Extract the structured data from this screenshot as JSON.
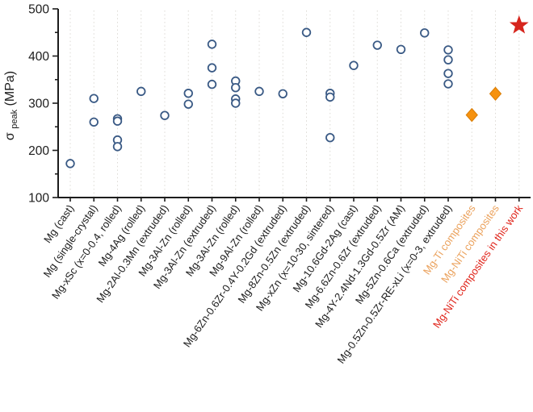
{
  "chart_data": {
    "type": "scatter",
    "title": "",
    "ylabel_symbol": "σ",
    "ylabel_subscript": "peak",
    "ylabel_unit": " (MPa)",
    "ylim": [
      100,
      500
    ],
    "yticks": [
      100,
      200,
      300,
      400,
      500
    ],
    "yticks_minor": [
      150,
      250,
      350,
      450
    ],
    "grid": "vertical-dashed",
    "legend": "none",
    "categories": [
      {
        "label": "Mg (cast)",
        "group": "alloy",
        "values": [
          172
        ]
      },
      {
        "label": "Mg (single-crystal)",
        "group": "alloy",
        "values": [
          310,
          260
        ]
      },
      {
        "label": "Mg-xSc (x=0-0.4, rolled)",
        "group": "alloy",
        "values": [
          267,
          262,
          222,
          208
        ]
      },
      {
        "label": "Mg-4Ag (rolled)",
        "group": "alloy",
        "values": [
          325
        ]
      },
      {
        "label": "Mg-2Al-0.3Mn (extruded)",
        "group": "alloy",
        "values": [
          274
        ]
      },
      {
        "label": "Mg-3Al-Zn (rolled)",
        "group": "alloy",
        "values": [
          321,
          298
        ]
      },
      {
        "label": "Mg-3Al-Zn (extruded)",
        "group": "alloy",
        "values": [
          425,
          375,
          340
        ]
      },
      {
        "label": "Mg-3Al-Zn (rolled)",
        "group": "alloy",
        "values": [
          347,
          333,
          309,
          300
        ]
      },
      {
        "label": "Mg-9Al-Zn (rolled)",
        "group": "alloy",
        "values": [
          325
        ]
      },
      {
        "label": "Mg-6Zn-0.6Zr-0.4Y-0.2Gd (extruded)",
        "group": "alloy",
        "values": [
          320
        ]
      },
      {
        "label": "Mg-8Zn-0.5Zn (extruded)",
        "group": "alloy",
        "values": [
          450
        ]
      },
      {
        "label": "Mg-xZn (x=10-30, sintered)",
        "group": "alloy",
        "values": [
          321,
          313,
          227
        ]
      },
      {
        "label": "Mg-10.6Gd-2Ag (cast)",
        "group": "alloy",
        "values": [
          380
        ]
      },
      {
        "label": "Mg-6.6Zn-0.6Zr (extruded)",
        "group": "alloy",
        "values": [
          423
        ]
      },
      {
        "label": "Mg-4Y-2.4Nd-1.3Gd-0.5Zr (AM)",
        "group": "alloy",
        "values": [
          414
        ]
      },
      {
        "label": "Mg-5Zn-0.6Ca (extruded)",
        "group": "alloy",
        "values": [
          449
        ]
      },
      {
        "label": "Mg-0.5Zn-0.5Zr-RE-xLi (x=0-3, extruded)",
        "group": "alloy",
        "values": [
          413,
          392,
          363,
          341
        ]
      },
      {
        "label": "Mg-Ti composites",
        "group": "composite",
        "values": [
          275
        ]
      },
      {
        "label": "Mg-NiTi composites",
        "group": "composite",
        "values": [
          320
        ]
      },
      {
        "label": "Mg-NiTi composites in this work",
        "group": "this_work",
        "values": [
          465
        ]
      }
    ],
    "markers": {
      "alloy": {
        "shape": "circle",
        "stroke": "#3a5a85",
        "fill": "#ffffff"
      },
      "composite": {
        "shape": "diamond",
        "stroke": "#d97d06",
        "fill": "#f6920f"
      },
      "this_work": {
        "shape": "star",
        "stroke": "#d6251d",
        "fill": "#d6251d"
      }
    },
    "label_colors": {
      "alloy": "#1c1c1c",
      "composite": "#eba25d",
      "this_work": "#e0251b"
    },
    "axis_color": "#1c1c1c",
    "grid_color": "#dcd9d4",
    "background": "#ffffff"
  }
}
